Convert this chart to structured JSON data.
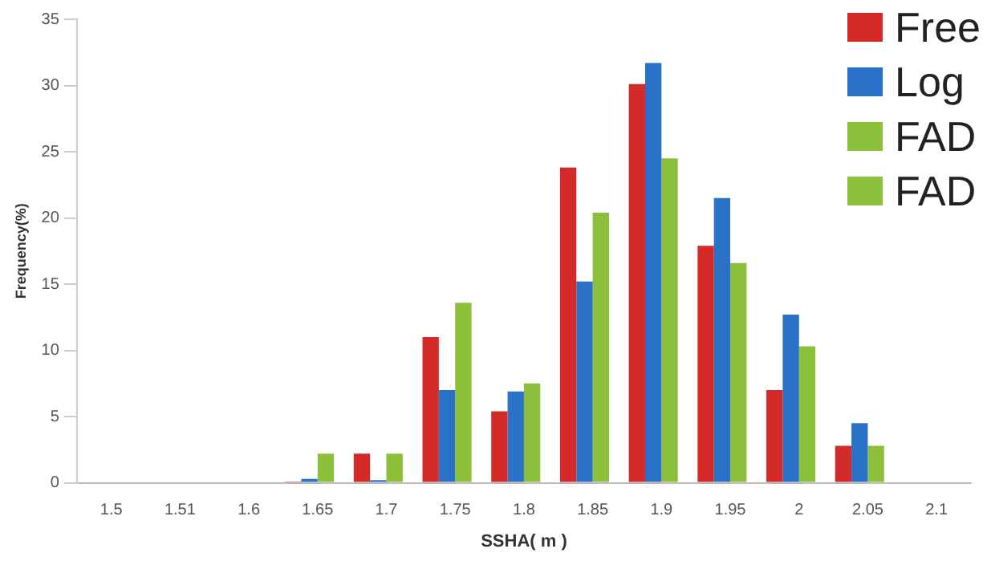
{
  "chart_data": {
    "type": "bar",
    "xlabel": "SSHA( m )",
    "ylabel": "Frequency(%)",
    "categories": [
      "1.5",
      "1.51",
      "1.6",
      "1.65",
      "1.7",
      "1.75",
      "1.8",
      "1.85",
      "1.9",
      "1.95",
      "2",
      "2.05",
      "2.1"
    ],
    "series": [
      {
        "name": "Free",
        "color": "#d42a2a",
        "values": [
          0,
          0,
          0,
          0.1,
          2.2,
          11,
          5.4,
          23.8,
          30.1,
          17.9,
          7,
          2.8,
          0
        ]
      },
      {
        "name": "Log",
        "color": "#2a72c8",
        "values": [
          0,
          0,
          0,
          0.3,
          0.2,
          7,
          6.9,
          15.2,
          31.7,
          21.5,
          12.7,
          4.5,
          0
        ]
      },
      {
        "name": "FAD",
        "color": "#8cc03a",
        "values": [
          0,
          0,
          0,
          2.2,
          2.2,
          13.6,
          7.5,
          20.4,
          24.5,
          16.6,
          10.3,
          2.8,
          0
        ]
      },
      {
        "name": "FAD",
        "color": "#8cc03a",
        "values": [
          null,
          null,
          null,
          null,
          null,
          null,
          null,
          null,
          null,
          null,
          null,
          null,
          null
        ]
      }
    ],
    "ylim": [
      0,
      35
    ],
    "yticks": [
      0,
      5,
      10,
      15,
      20,
      25,
      30,
      35
    ],
    "grid": false,
    "legend": "top right"
  }
}
